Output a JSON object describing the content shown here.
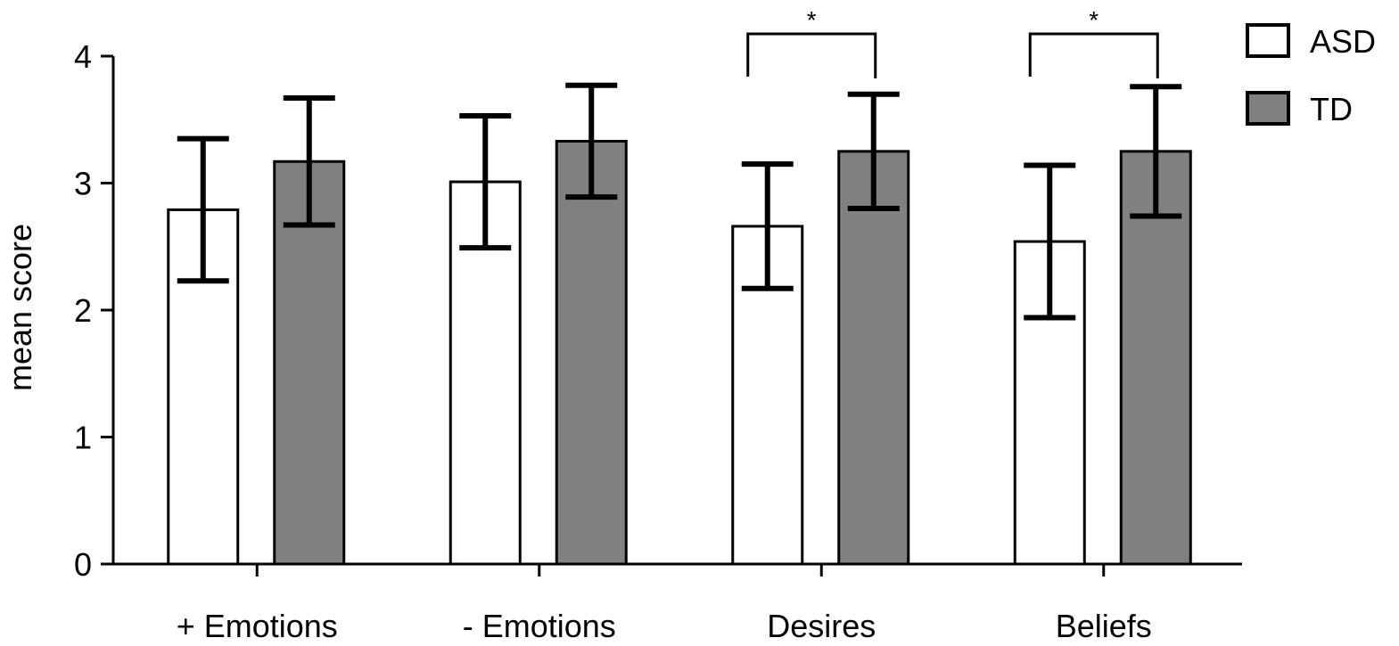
{
  "chart_data": {
    "type": "bar",
    "ylabel": "mean score",
    "xlabel": "",
    "ylim": [
      0,
      4
    ],
    "yticks": [
      "0",
      "1",
      "2",
      "3",
      "4"
    ],
    "categories": [
      "+ Emotions",
      "- Emotions",
      "Desires",
      "Beliefs"
    ],
    "series": [
      {
        "name": "ASD",
        "color": "#ffffff",
        "values": [
          2.79,
          3.01,
          2.66,
          2.54
        ],
        "err_low": [
          2.23,
          2.49,
          2.17,
          1.94
        ],
        "err_high": [
          3.35,
          3.53,
          3.15,
          3.14
        ]
      },
      {
        "name": "TD",
        "color": "#808080",
        "values": [
          3.17,
          3.33,
          3.25,
          3.25
        ],
        "err_low": [
          2.67,
          2.89,
          2.8,
          2.74
        ],
        "err_high": [
          3.67,
          3.77,
          3.7,
          3.76
        ]
      }
    ],
    "significance": [
      {
        "category": "Desires",
        "label": "*"
      },
      {
        "category": "Beliefs",
        "label": "*"
      }
    ],
    "legend_position": "top-right",
    "grid": false
  }
}
